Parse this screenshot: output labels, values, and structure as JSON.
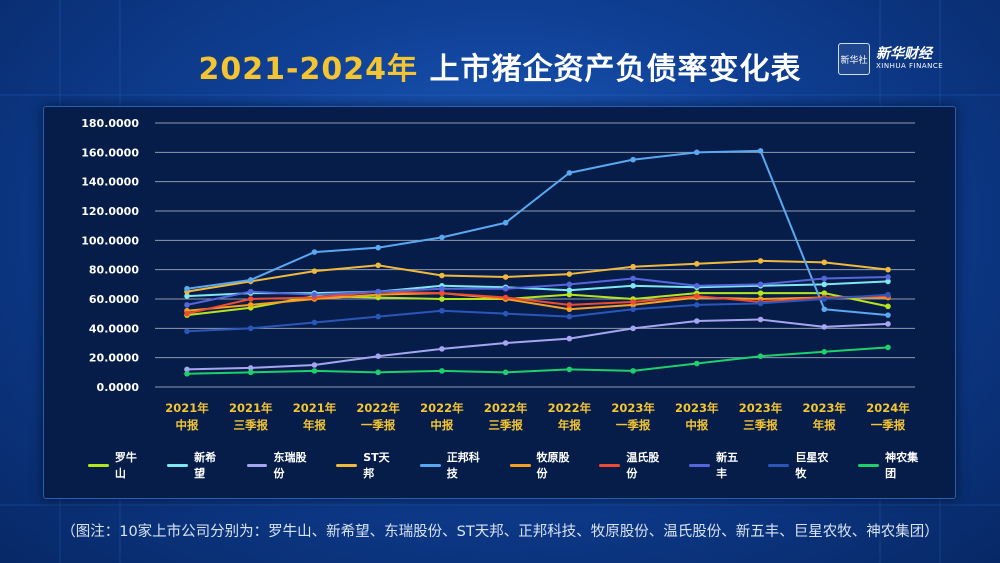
{
  "title": {
    "year_part": "2021-2024年",
    "rest": " 上市猪企资产负债率变化表"
  },
  "logo": {
    "box_text": "新华社",
    "cn": "新华财经",
    "en": "XINHUA FINANCE"
  },
  "footnote": "（图注：10家上市公司分别为：罗牛山、新希望、东瑞股份、ST天邦、正邦科技、牧原股份、温氏股份、新五丰、巨星农牧、神农集团）",
  "chart_data": {
    "type": "line",
    "categories": [
      [
        "2021年",
        "中报"
      ],
      [
        "2021年",
        "三季报"
      ],
      [
        "2021年",
        "年报"
      ],
      [
        "2022年",
        "一季报"
      ],
      [
        "2022年",
        "中报"
      ],
      [
        "2022年",
        "三季报"
      ],
      [
        "2022年",
        "年报"
      ],
      [
        "2023年",
        "一季报"
      ],
      [
        "2023年",
        "中报"
      ],
      [
        "2023年",
        "三季报"
      ],
      [
        "2023年",
        "年报"
      ],
      [
        "2024年",
        "一季报"
      ]
    ],
    "yticks": [
      "0.0000",
      "20.0000",
      "40.0000",
      "60.0000",
      "80.0000",
      "100.0000",
      "120.0000",
      "140.0000",
      "160.0000",
      "180.0000"
    ],
    "ylim": [
      0,
      180
    ],
    "grid": true,
    "legend_position": "bottom",
    "series": [
      {
        "name": "罗牛山",
        "color": "#b5e61d",
        "values": [
          49,
          54,
          62,
          61,
          60,
          60,
          63,
          60,
          64,
          64,
          64,
          55
        ]
      },
      {
        "name": "新希望",
        "color": "#7ee8f2",
        "values": [
          62,
          64,
          64,
          65,
          69,
          68,
          66,
          69,
          68,
          69,
          70,
          72
        ]
      },
      {
        "name": "东瑞股份",
        "color": "#a6a6f0",
        "values": [
          12,
          13,
          15,
          21,
          26,
          30,
          33,
          40,
          45,
          46,
          41,
          43
        ]
      },
      {
        "name": "ST天邦",
        "color": "#f0b93c",
        "values": [
          65,
          72,
          79,
          83,
          76,
          75,
          77,
          82,
          84,
          86,
          85,
          80
        ]
      },
      {
        "name": "正邦科技",
        "color": "#5aa8f0",
        "values": [
          67,
          73,
          92,
          95,
          102,
          112,
          146,
          155,
          160,
          161,
          53,
          49
        ]
      },
      {
        "name": "牧原股份",
        "color": "#f5a020",
        "values": [
          52,
          56,
          60,
          63,
          64,
          60,
          53,
          56,
          61,
          60,
          61,
          61
        ]
      },
      {
        "name": "温氏股份",
        "color": "#f04a30",
        "values": [
          50,
          60,
          61,
          65,
          64,
          61,
          56,
          58,
          62,
          58,
          61,
          62
        ]
      },
      {
        "name": "新五丰",
        "color": "#5566dd",
        "values": [
          56,
          65,
          63,
          65,
          67,
          67,
          70,
          74,
          69,
          70,
          74,
          75
        ]
      },
      {
        "name": "巨星农牧",
        "color": "#2a56b8",
        "values": [
          38,
          40,
          44,
          48,
          52,
          50,
          48,
          53,
          56,
          57,
          60,
          63
        ]
      },
      {
        "name": "神农集团",
        "color": "#1ed06a",
        "values": [
          9,
          10,
          11,
          10,
          11,
          10,
          12,
          11,
          16,
          21,
          24,
          27
        ]
      }
    ]
  }
}
